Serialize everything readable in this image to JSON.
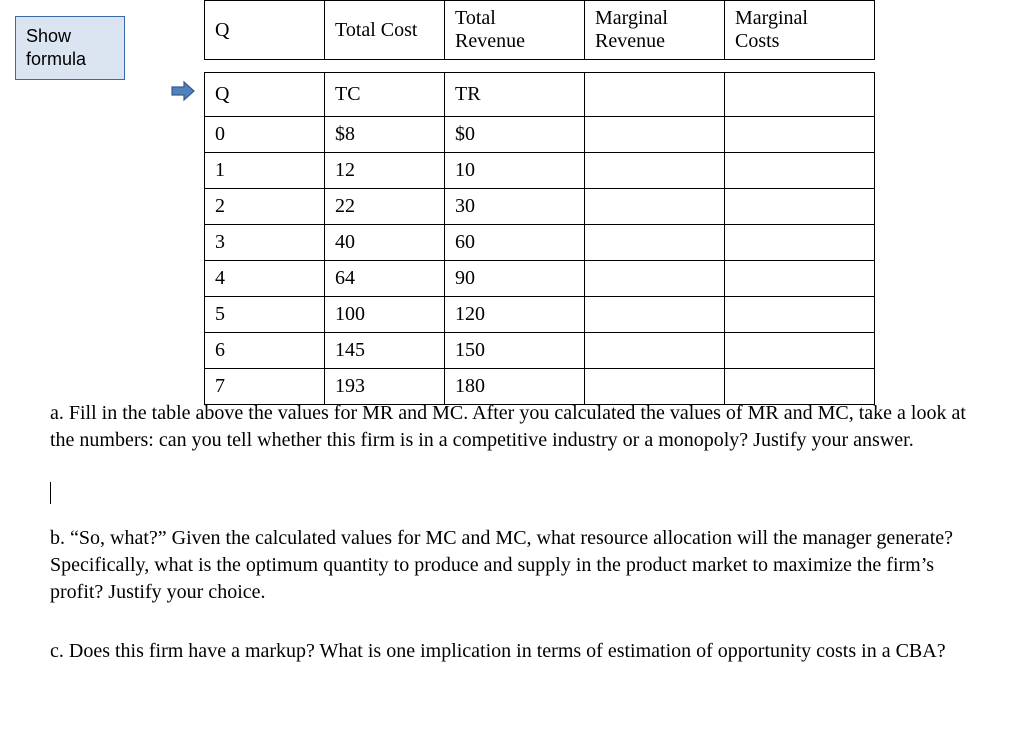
{
  "showFormula": {
    "line1": "Show",
    "line2": "formula",
    "bg_color": "#dbe5f1",
    "border_color": "#3a6aa8"
  },
  "arrow": {
    "fill": "#4f81bd",
    "stroke": "#385d8a"
  },
  "table": {
    "headers": [
      "Q",
      "Total Cost",
      "Total Revenue",
      "Marginal Revenue",
      "Marginal Costs"
    ],
    "symbols": [
      "Q",
      "TC",
      "TR",
      "",
      ""
    ],
    "rows": [
      [
        "0",
        "$8",
        "$0",
        "",
        ""
      ],
      [
        "1",
        "12",
        "10",
        "",
        ""
      ],
      [
        "2",
        "22",
        "30",
        "",
        ""
      ],
      [
        "3",
        "40",
        "60",
        "",
        ""
      ],
      [
        "4",
        "64",
        "90",
        "",
        ""
      ],
      [
        "5",
        "100",
        "120",
        "",
        ""
      ],
      [
        "6",
        "145",
        "150",
        "",
        ""
      ],
      [
        "7",
        "193",
        "180",
        "",
        ""
      ]
    ],
    "border_color": "#000000",
    "background_color": "#ffffff",
    "font_size": 20
  },
  "questions": {
    "a": "a. Fill in the table above the values for MR and MC. After you calculated the values of MR and MC, take a look at the numbers: can you tell whether this firm is in a competitive industry or a monopoly? Justify your answer.",
    "b": "b. “So, what?” Given the calculated values for MC and MC, what resource allocation will the manager generate? Specifically, what is the optimum quantity to produce and supply in the product market to maximize the firm’s profit? Justify your choice.",
    "c": "c. Does this firm have a markup? What is one implication in terms of estimation of opportunity costs in a CBA?"
  }
}
